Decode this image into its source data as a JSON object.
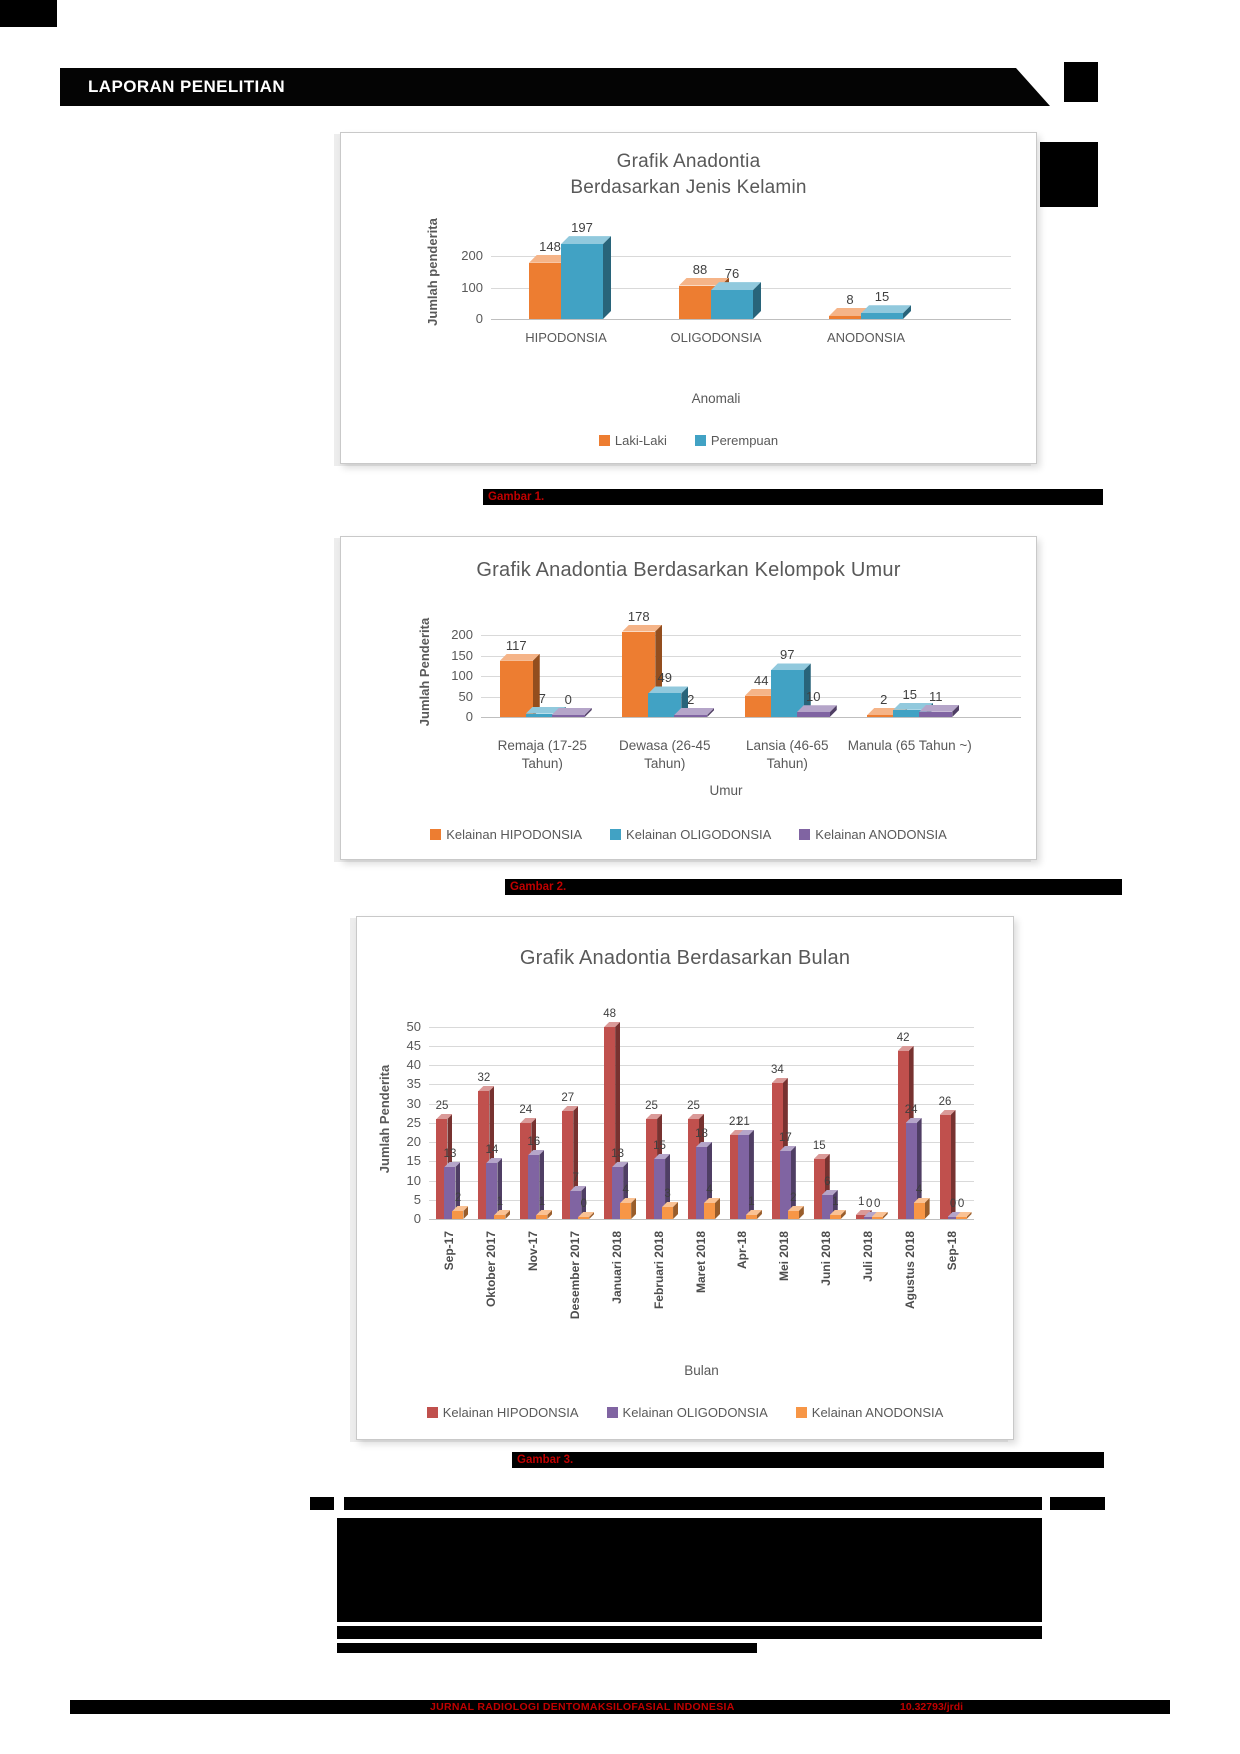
{
  "header": {
    "title": "LAPORAN PENELITIAN"
  },
  "captions": {
    "fig1": "Gambar 1.",
    "fig2": "Gambar 2.",
    "fig3": "Gambar 3."
  },
  "footer": {
    "journal": "Jurnal Radiologi Dentomaksilofasial Indonesia",
    "doi": "10.32793/jrdi"
  },
  "chart_data": [
    {
      "type": "bar",
      "variant": "3d-clustered-column",
      "title": "Grafik Anadontia\nBerdasarkan Jenis Kelamin",
      "categories": [
        "HIPODONSIA",
        "OLIGODONSIA",
        "ANODONSIA"
      ],
      "series": [
        {
          "name": "Laki-Laki",
          "color": "#ED7D31",
          "values": [
            148,
            88,
            8
          ]
        },
        {
          "name": "Perempuan",
          "color": "#41A2C4",
          "values": [
            197,
            76,
            15
          ]
        }
      ],
      "xlabel": "Anomali",
      "ylabel": "Jumlah penderita",
      "yticks": [
        0,
        100,
        200
      ],
      "ylim": [
        0,
        300
      ],
      "grid": true,
      "legend_position": "bottom"
    },
    {
      "type": "bar",
      "variant": "3d-clustered-column",
      "title": "Grafik Anadontia Berdasarkan Kelompok Umur",
      "categories": [
        "Remaja (17-25 Tahun)",
        "Dewasa (26-45 Tahun)",
        "Lansia (46-65 Tahun)",
        "Manula (65 Tahun ~)"
      ],
      "series": [
        {
          "name": "Kelainan HIPODONSIA",
          "color": "#ED7D31",
          "values": [
            117,
            178,
            44,
            2
          ]
        },
        {
          "name": "Kelainan OLIGODONSIA",
          "color": "#41A2C4",
          "values": [
            7,
            49,
            97,
            15
          ]
        },
        {
          "name": "Kelainan ANODONSIA",
          "color": "#8064A2",
          "values": [
            0,
            2,
            10,
            11
          ]
        }
      ],
      "xlabel": "Umur",
      "ylabel": "Jumlah Penderita",
      "yticks": [
        0,
        50,
        100,
        150,
        200
      ],
      "ylim": [
        0,
        220
      ],
      "grid": true,
      "legend_position": "bottom"
    },
    {
      "type": "bar",
      "variant": "3d-clustered-column",
      "title": "Grafik Anadontia Berdasarkan Bulan",
      "categories": [
        "Sep-17",
        "Oktober 2017",
        "Nov-17",
        "Desember 2017",
        "Januari 2018",
        "Februari 2018",
        "Maret 2018",
        "Apr-18",
        "Mei 2018",
        "Juni 2018",
        "Juli 2018",
        "Agustus 2018",
        "Sep-18"
      ],
      "series": [
        {
          "name": "Kelainan HIPODONSIA",
          "color": "#C0504D",
          "values": [
            25,
            32,
            24,
            27,
            48,
            25,
            25,
            21,
            34,
            15,
            1,
            42,
            26
          ]
        },
        {
          "name": "Kelainan OLIGODONSIA",
          "color": "#8064A2",
          "values": [
            13,
            14,
            16,
            7,
            13,
            15,
            18,
            21,
            17,
            6,
            0,
            24,
            0
          ]
        },
        {
          "name": "Kelainan ANODONSIA",
          "color": "#F79646",
          "values": [
            2,
            1,
            1,
            0,
            4,
            3,
            4,
            1,
            2,
            1,
            0,
            4,
            0
          ]
        }
      ],
      "xlabel": "Bulan",
      "ylabel": "Jumlah Penderita",
      "yticks": [
        0,
        5,
        10,
        15,
        20,
        25,
        30,
        35,
        40,
        45,
        50
      ],
      "ylim": [
        0,
        52
      ],
      "grid": true,
      "legend_position": "bottom"
    }
  ]
}
